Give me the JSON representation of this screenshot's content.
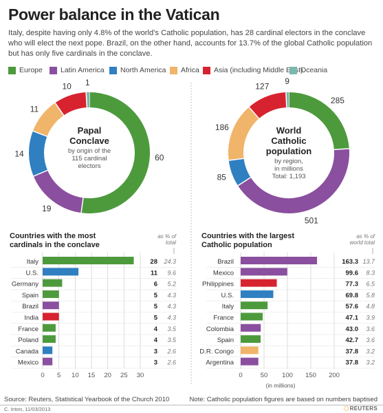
{
  "title": "Power balance in the Vatican",
  "subtitle": "Italy, despite having only 4.8% of the world's Catholic population, has 28 cardinal electors in the conclave who will elect the next pope. Brazil, on the other hand, accounts for 13.7% of the global Catholic population but has only five cardinals in the conclave.",
  "legend": [
    {
      "label": "Europe",
      "color": "#4d9a3d"
    },
    {
      "label": "Latin America",
      "color": "#8a4f9e"
    },
    {
      "label": "North America",
      "color": "#2f7fc1"
    },
    {
      "label": "Africa",
      "color": "#f0b46a"
    },
    {
      "label": "Asia (including Middle East)",
      "color": "#d7232f"
    },
    {
      "label": "Oceania",
      "color": "#7ab8b0"
    }
  ],
  "chart_data": [
    {
      "type": "pie",
      "variant": "donut",
      "center_title": "Papal Conclave",
      "center_sub": "by origin of the 115 cardinal electors",
      "slices": [
        {
          "region": "Europe",
          "value": 60
        },
        {
          "region": "Latin America",
          "value": 19
        },
        {
          "region": "North America",
          "value": 14
        },
        {
          "region": "Africa",
          "value": 11
        },
        {
          "region": "Asia (including Middle East)",
          "value": 10
        },
        {
          "region": "Oceania",
          "value": 1
        }
      ]
    },
    {
      "type": "pie",
      "variant": "donut",
      "center_title": "World Catholic population",
      "center_sub": "by region, in millions",
      "center_total": "Total: 1,193",
      "slices": [
        {
          "region": "Europe",
          "value": 285
        },
        {
          "region": "Latin America",
          "value": 501
        },
        {
          "region": "North America",
          "value": 85
        },
        {
          "region": "Africa",
          "value": 186
        },
        {
          "region": "Asia (including Middle East)",
          "value": 127
        },
        {
          "region": "Oceania",
          "value": 9
        }
      ]
    },
    {
      "type": "bar",
      "orientation": "horizontal",
      "title": "Countries with the most cardinals in the conclave",
      "pct_header": "as % of total",
      "xlim": [
        0,
        30
      ],
      "ticks": [
        0,
        5,
        10,
        15,
        20,
        25,
        30
      ],
      "xlabel": "",
      "rows": [
        {
          "label": "Italy",
          "value": 28,
          "value_text": "28",
          "pct": "24.3",
          "region": "Europe"
        },
        {
          "label": "U.S.",
          "value": 11,
          "value_text": "11",
          "pct": "9.6",
          "region": "North America"
        },
        {
          "label": "Germany",
          "value": 6,
          "value_text": "6",
          "pct": "5.2",
          "region": "Europe"
        },
        {
          "label": "Spain",
          "value": 5,
          "value_text": "5",
          "pct": "4.3",
          "region": "Europe"
        },
        {
          "label": "Brazil",
          "value": 5,
          "value_text": "5",
          "pct": "4.3",
          "region": "Latin America"
        },
        {
          "label": "India",
          "value": 5,
          "value_text": "5",
          "pct": "4.3",
          "region": "Asia (including Middle East)"
        },
        {
          "label": "France",
          "value": 4,
          "value_text": "4",
          "pct": "3.5",
          "region": "Europe"
        },
        {
          "label": "Poland",
          "value": 4,
          "value_text": "4",
          "pct": "3.5",
          "region": "Europe"
        },
        {
          "label": "Canada",
          "value": 3,
          "value_text": "3",
          "pct": "2.6",
          "region": "North America"
        },
        {
          "label": "Mexico",
          "value": 3,
          "value_text": "3",
          "pct": "2.6",
          "region": "Latin America"
        }
      ]
    },
    {
      "type": "bar",
      "orientation": "horizontal",
      "title": "Countries with the largest Catholic population",
      "pct_header": "as % of world total",
      "xlim": [
        0,
        200
      ],
      "ticks": [
        0,
        50,
        100,
        150,
        200
      ],
      "xlabel": "(in millions)",
      "rows": [
        {
          "label": "Brazil",
          "value": 163.3,
          "value_text": "163.3",
          "pct": "13.7",
          "region": "Latin America"
        },
        {
          "label": "Mexico",
          "value": 99.6,
          "value_text": "99.6",
          "pct": "8.3",
          "region": "Latin America"
        },
        {
          "label": "Philippines",
          "value": 77.3,
          "value_text": "77.3",
          "pct": "6.5",
          "region": "Asia (including Middle East)"
        },
        {
          "label": "U.S.",
          "value": 69.8,
          "value_text": "69.8",
          "pct": "5.8",
          "region": "North America"
        },
        {
          "label": "Italy",
          "value": 57.6,
          "value_text": "57.6",
          "pct": "4.8",
          "region": "Europe"
        },
        {
          "label": "France",
          "value": 47.1,
          "value_text": "47.1",
          "pct": "3.9",
          "region": "Europe"
        },
        {
          "label": "Colombia",
          "value": 43.0,
          "value_text": "43.0",
          "pct": "3.6",
          "region": "Latin America"
        },
        {
          "label": "Spain",
          "value": 42.7,
          "value_text": "42.7",
          "pct": "3.6",
          "region": "Europe"
        },
        {
          "label": "D.R. Congo",
          "value": 37.8,
          "value_text": "37.8",
          "pct": "3.2",
          "region": "Africa"
        },
        {
          "label": "Argentina",
          "value": 37.8,
          "value_text": "37.8",
          "pct": "3.2",
          "region": "Latin America"
        }
      ]
    }
  ],
  "footer": {
    "source": "Source: Reuters, Statistical Yearbook of the Church 2010",
    "note": "Note: Catholic population figures are based on numbers baptised",
    "credit": "C. Inton, 11/03/2013",
    "brand": "REUTERS"
  }
}
